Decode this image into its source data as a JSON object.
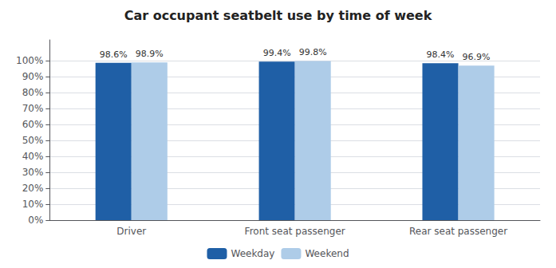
{
  "chart_data": {
    "type": "bar",
    "title": "Car occupant seatbelt use by time of week",
    "categories": [
      "Driver",
      "Front seat passenger",
      "Rear seat passenger"
    ],
    "series": [
      {
        "name": "Weekday",
        "color": "#1F5FA6",
        "values": [
          98.6,
          99.4,
          98.4
        ],
        "value_labels": [
          "98.6%",
          "99.4%",
          "98.4%"
        ]
      },
      {
        "name": "Weekend",
        "color": "#AECCE8",
        "values": [
          98.9,
          99.8,
          96.9
        ],
        "value_labels": [
          "98.9%",
          "99.8%",
          "96.9%"
        ]
      }
    ],
    "ylim": [
      0,
      113
    ],
    "yticks": [
      {
        "value": 0,
        "label": "0%"
      },
      {
        "value": 10,
        "label": "10%"
      },
      {
        "value": 20,
        "label": "20%"
      },
      {
        "value": 30,
        "label": "30%"
      },
      {
        "value": 40,
        "label": "40%"
      },
      {
        "value": 50,
        "label": "50%"
      },
      {
        "value": 60,
        "label": "60%"
      },
      {
        "value": 70,
        "label": "70%"
      },
      {
        "value": 80,
        "label": "80%"
      },
      {
        "value": 90,
        "label": "90%"
      },
      {
        "value": 100,
        "label": "100%"
      }
    ],
    "grid": true,
    "legend": "bottom",
    "data_labels": true
  }
}
